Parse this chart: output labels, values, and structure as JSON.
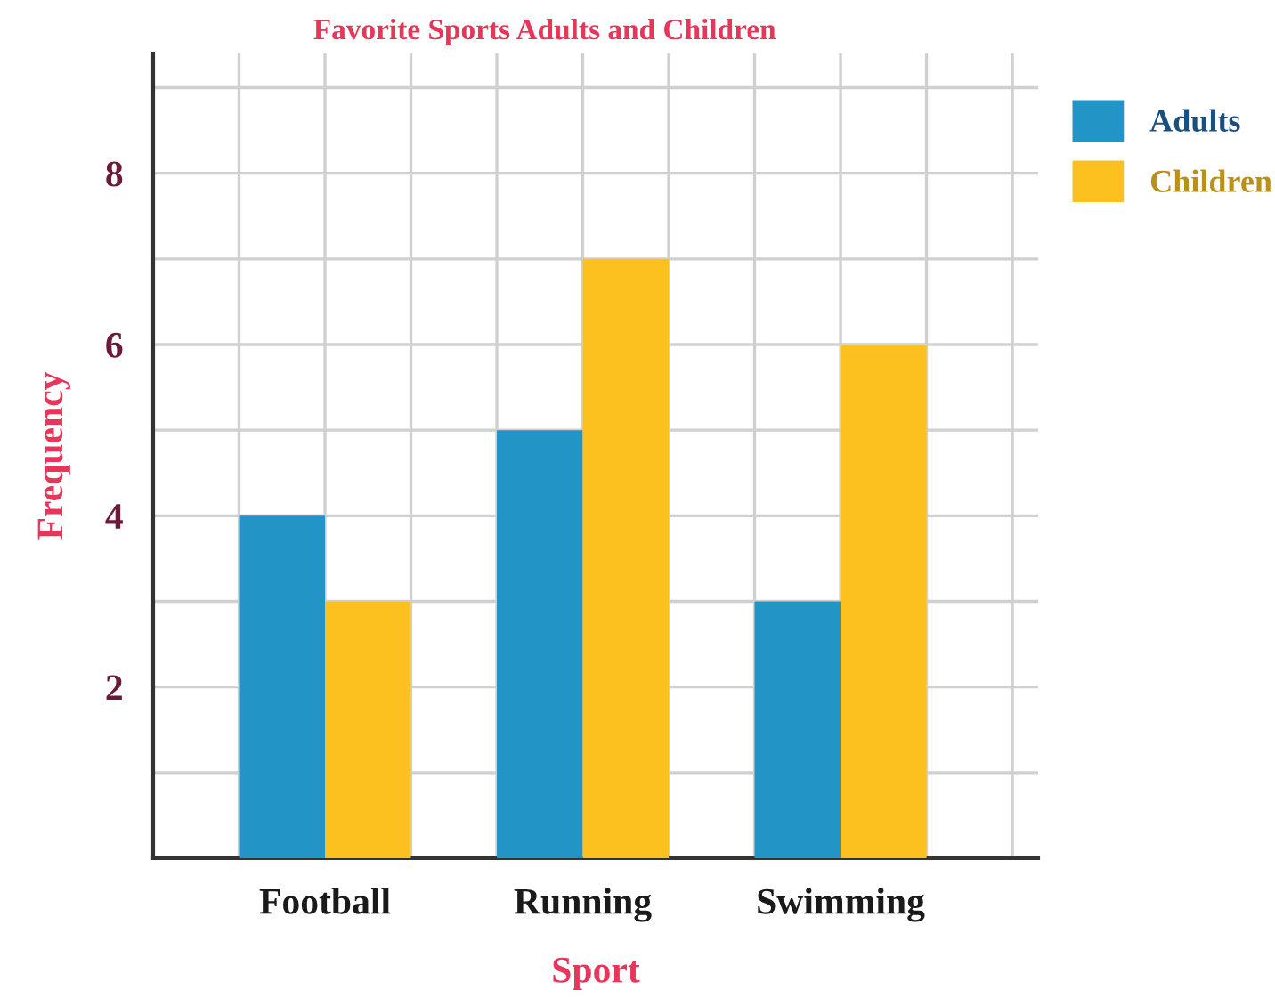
{
  "chart_data": {
    "type": "bar",
    "title": "Favorite Sports Adults and Children",
    "xlabel": "Sport",
    "ylabel": "Frequency",
    "categories": [
      "Football",
      "Running",
      "Swimming"
    ],
    "series": [
      {
        "name": "Adults",
        "color": "#2394c6",
        "values": [
          4,
          5,
          3
        ]
      },
      {
        "name": "Children",
        "color": "#fdc11f",
        "values": [
          3,
          7,
          6
        ]
      }
    ],
    "ylim": [
      0,
      9.4
    ],
    "yticks": [
      {
        "value": 1,
        "label": null
      },
      2,
      {
        "value": 3,
        "label": null
      },
      4,
      {
        "value": 5,
        "label": null
      },
      6,
      {
        "value": 7,
        "label": null
      },
      8,
      {
        "value": 9,
        "label": null
      }
    ],
    "grid": true,
    "legend": "top right"
  }
}
